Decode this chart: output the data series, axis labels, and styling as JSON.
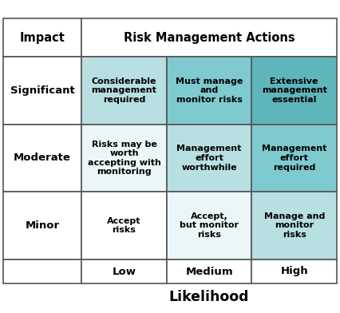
{
  "title_left": "Impact",
  "title_right": "Risk Management Actions",
  "row_labels": [
    "Significant",
    "Moderate",
    "Minor"
  ],
  "col_labels": [
    "Low",
    "Medium",
    "High"
  ],
  "likelihood_label": "Likelihood",
  "cells": [
    [
      "Considerable\nmanagement\nrequired",
      "Must manage\nand\nmonitor risks",
      "Extensive\nmanagement\nessential"
    ],
    [
      "Risks may be\nworth\naccepting with\nmonitoring",
      "Management\neffort\nworthwhile",
      "Management\neffort\nrequired"
    ],
    [
      "Accept\nrisks",
      "Accept,\nbut monitor\nrisks",
      "Manage and\nmonitor\nrisks"
    ]
  ],
  "cell_colors": [
    [
      "#b8dfe2",
      "#7ecacf",
      "#5eb5bb"
    ],
    [
      "#eaf6f7",
      "#b8dfe2",
      "#7ecacf"
    ],
    [
      "#ffffff",
      "#eaf6f7",
      "#b8dfe2"
    ]
  ],
  "header_bg": "#ffffff",
  "border_color": "#555555",
  "text_color": "#000000",
  "header_fontsize": 10.5,
  "cell_fontsize": 8.0,
  "row_label_fontsize": 9.5,
  "col_label_fontsize": 9.5,
  "likelihood_fontsize": 12.5,
  "fig_width": 4.26,
  "fig_height": 3.92,
  "dpi": 100
}
